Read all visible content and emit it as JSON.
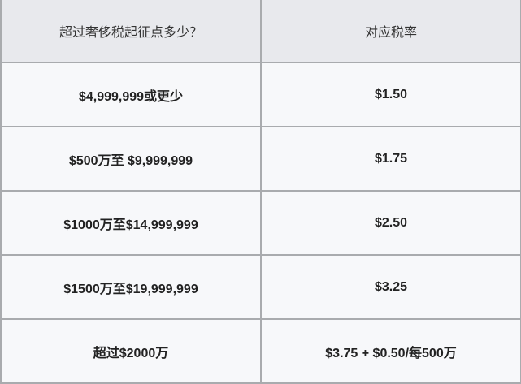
{
  "table": {
    "headers": [
      "超过奢侈税起征点多少？",
      "对应税率"
    ],
    "rows": [
      [
        "$4,999,999或更少",
        "$1.50"
      ],
      [
        "$500万至 $9,999,999",
        "$1.75"
      ],
      [
        "$1000万至$14,999,999",
        "$2.50"
      ],
      [
        "$1500万至$19,999,999",
        "$3.25"
      ],
      [
        "超过$2000万",
        "$3.75 + $0.50/每500万"
      ]
    ]
  }
}
